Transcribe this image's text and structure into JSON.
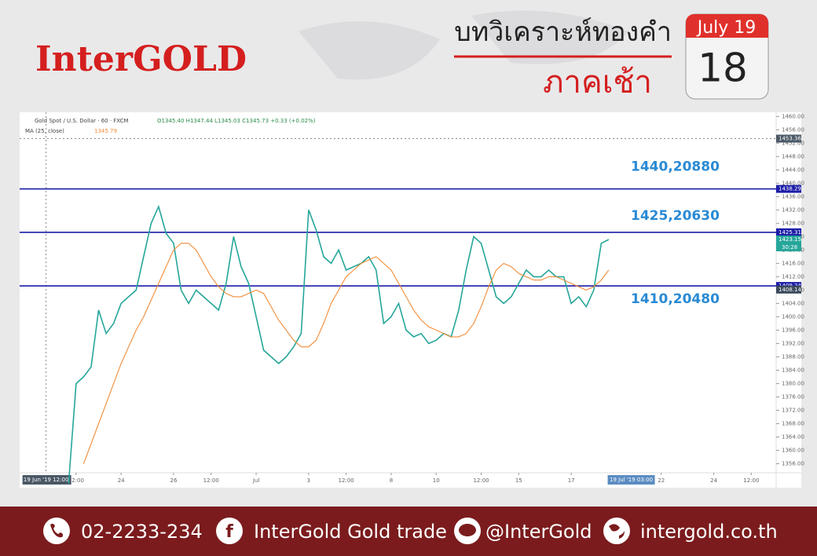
{
  "header": {
    "logo": "InterGOLD",
    "title": "บทวิเคราะห์ทองคำ",
    "subtitle": "ภาคเช้า",
    "calendar_month": "July 19",
    "calendar_day": "18"
  },
  "chart_data": {
    "type": "line",
    "symbol": "Gold Spot / U.S. Dollar · 60 · FXCM",
    "ohlc": "O1345.40 H1347.44 L1345.03 C1345.73 +0.33 (+0.02%)",
    "ma_label": "MA (25, close)",
    "ma_value": "1345.79",
    "x": [
      6,
      7,
      8,
      9,
      10,
      11,
      12,
      13,
      14,
      15,
      16,
      17,
      18,
      19,
      20,
      21,
      22,
      23,
      24,
      25,
      26,
      27,
      28,
      29,
      30,
      31,
      32,
      33,
      34,
      35,
      36,
      37,
      38,
      39,
      40,
      41,
      42,
      43,
      44,
      45,
      46,
      47,
      48,
      49,
      50,
      51,
      52,
      53,
      54,
      55,
      56,
      57,
      58,
      59,
      60,
      61,
      62,
      63,
      64,
      65,
      66,
      67,
      68,
      69,
      70,
      71,
      72,
      73,
      74,
      75,
      76,
      77,
      78
    ],
    "series": [
      {
        "name": "Close",
        "color": "#26a69a",
        "values": [
          1350,
          1380,
          1382,
          1385,
          1402,
          1395,
          1398,
          1404,
          1406,
          1408,
          1418,
          1428,
          1433,
          1425,
          1422,
          1408,
          1404,
          1408,
          1406,
          1404,
          1402,
          1410,
          1424,
          1415,
          1410,
          1400,
          1390,
          1388,
          1386,
          1388,
          1391,
          1395,
          1432,
          1426,
          1418,
          1416,
          1420,
          1414,
          1415,
          1416,
          1418,
          1414,
          1398,
          1400,
          1404,
          1396,
          1394,
          1395,
          1392,
          1393,
          1395,
          1394,
          1402,
          1414,
          1424,
          1422,
          1414,
          1406,
          1404,
          1406,
          1410,
          1414,
          1412,
          1412,
          1414,
          1412,
          1412,
          1404,
          1406,
          1403,
          1408,
          1422,
          1423.15
        ]
      },
      {
        "name": "MA",
        "color": "#f28c38",
        "values": [
          null,
          null,
          1356,
          1362,
          1368,
          1374,
          1380,
          1386,
          1391,
          1396,
          1400,
          1405,
          1410,
          1415,
          1420,
          1422,
          1422,
          1420,
          1416,
          1412,
          1409,
          1407,
          1406,
          1406,
          1407,
          1408,
          1407,
          1403,
          1399,
          1396,
          1393,
          1391,
          1391,
          1393,
          1398,
          1404,
          1408,
          1412,
          1414,
          1416,
          1417,
          1418,
          1416,
          1414,
          1410,
          1406,
          1402,
          1399,
          1397,
          1396,
          1395,
          1394,
          1394,
          1395,
          1398,
          1403,
          1409,
          1414,
          1416,
          1415,
          1413,
          1412,
          1411,
          1411,
          1412,
          1412,
          1411,
          1410,
          1409,
          1408,
          1409,
          1411,
          1414
        ]
      }
    ],
    "xlim": [
      0,
      100
    ],
    "xticks": [
      {
        "value": 7,
        "label": "12:00"
      },
      {
        "value": 13,
        "label": "24"
      },
      {
        "value": 20,
        "label": "26"
      },
      {
        "value": 25,
        "label": "12:00"
      },
      {
        "value": 31,
        "label": "Jul"
      },
      {
        "value": 38,
        "label": "3"
      },
      {
        "value": 43,
        "label": "12:00"
      },
      {
        "value": 49,
        "label": "8"
      },
      {
        "value": 55,
        "label": "10"
      },
      {
        "value": 61,
        "label": "12:00"
      },
      {
        "value": 66,
        "label": "15"
      },
      {
        "value": 73,
        "label": "17"
      },
      {
        "value": 85,
        "label": "22"
      },
      {
        "value": 92,
        "label": "24"
      },
      {
        "value": 97,
        "label": "12:00"
      }
    ],
    "ylim": [
      1354,
      1461
    ],
    "yticks": [
      {
        "value": 1356,
        "label": "1356.00"
      },
      {
        "value": 1360,
        "label": "1360.00"
      },
      {
        "value": 1364,
        "label": "1364.00"
      },
      {
        "value": 1368,
        "label": "1368.00"
      },
      {
        "value": 1372,
        "label": "1372.00"
      },
      {
        "value": 1376,
        "label": "1376.00"
      },
      {
        "value": 1380,
        "label": "1380.00"
      },
      {
        "value": 1384,
        "label": "1384.00"
      },
      {
        "value": 1388,
        "label": "1388.00"
      },
      {
        "value": 1392,
        "label": "1392.00"
      },
      {
        "value": 1396,
        "label": "1396.00"
      },
      {
        "value": 1400,
        "label": "1400.00"
      },
      {
        "value": 1404,
        "label": "1404.00"
      },
      {
        "value": 1408,
        "label": "1408.00"
      },
      {
        "value": 1412,
        "label": "1412.00"
      },
      {
        "value": 1416,
        "label": "1416.00"
      },
      {
        "value": 1420,
        "label": "1420.00"
      },
      {
        "value": 1424,
        "label": "1424.00"
      },
      {
        "value": 1428,
        "label": "1428.00"
      },
      {
        "value": 1432,
        "label": "1432.00"
      },
      {
        "value": 1436,
        "label": "1436.00"
      },
      {
        "value": 1440,
        "label": "1440.00"
      },
      {
        "value": 1444,
        "label": "1444.00"
      },
      {
        "value": 1448,
        "label": "1448.00"
      },
      {
        "value": 1452,
        "label": "1452.00"
      },
      {
        "value": 1456,
        "label": "1456.00"
      },
      {
        "value": 1460,
        "label": "1460.00"
      }
    ],
    "levels": [
      {
        "value": 1438.29,
        "label": "1440,20880"
      },
      {
        "value": 1425.31,
        "label": "1425,20630"
      },
      {
        "value": 1409.24,
        "label": "1410,20480"
      }
    ],
    "crosshair": {
      "x": 3,
      "x_label": "19 Jun '19  12:00",
      "y": 1453.36
    },
    "time_marker": {
      "x": 81,
      "label": "19 Jul '19  03:00"
    },
    "countdown": "30:28",
    "extra_tag": 1408.14
  },
  "footer": {
    "phone": "02-2233-234",
    "facebook": "InterGold Gold trade",
    "line": "@InterGold",
    "website": "intergold.co.th"
  }
}
